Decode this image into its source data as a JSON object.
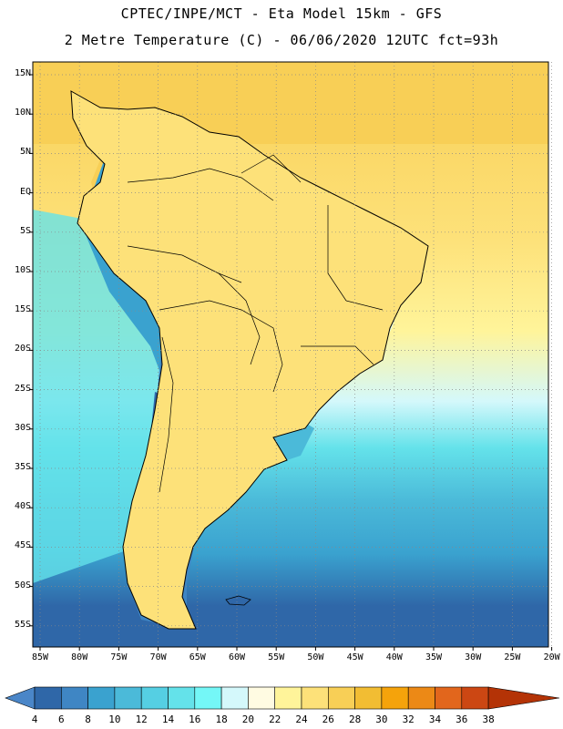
{
  "header": {
    "line1": "CPTEC/INPE/MCT -  Eta Model 15km - GFS",
    "line2": "2 Metre Temperature (C) - 06/06/2020 12UTC fct=93h"
  },
  "map": {
    "lat_labels": [
      "15N",
      "10N",
      "5N",
      "EQ",
      "5S",
      "10S",
      "15S",
      "20S",
      "25S",
      "30S",
      "35S",
      "40S",
      "45S",
      "50S",
      "55S"
    ],
    "lon_labels": [
      "85W",
      "80W",
      "75W",
      "70W",
      "65W",
      "60W",
      "55W",
      "50W",
      "45W",
      "40W",
      "35W",
      "30W",
      "25W",
      "20W"
    ],
    "lat_range": [
      15,
      -55
    ],
    "lon_range": [
      -85,
      -20
    ],
    "grid": "dotted"
  },
  "colorbar": {
    "labels": [
      "4",
      "6",
      "8",
      "10",
      "12",
      "14",
      "16",
      "18",
      "20",
      "22",
      "24",
      "26",
      "28",
      "30",
      "32",
      "34",
      "36",
      "38"
    ],
    "colors": [
      "#4a86c8",
      "#2f67a8",
      "#3f86c4",
      "#3aa2cf",
      "#4bbad9",
      "#55cfe3",
      "#64e2ea",
      "#74f7f7",
      "#d4f8fb",
      "#fffbe2",
      "#fff49a",
      "#fde179",
      "#f8cf56",
      "#f2bd33",
      "#f5a30b",
      "#ec8916",
      "#e2661c",
      "#cc4713",
      "#b43306"
    ]
  }
}
